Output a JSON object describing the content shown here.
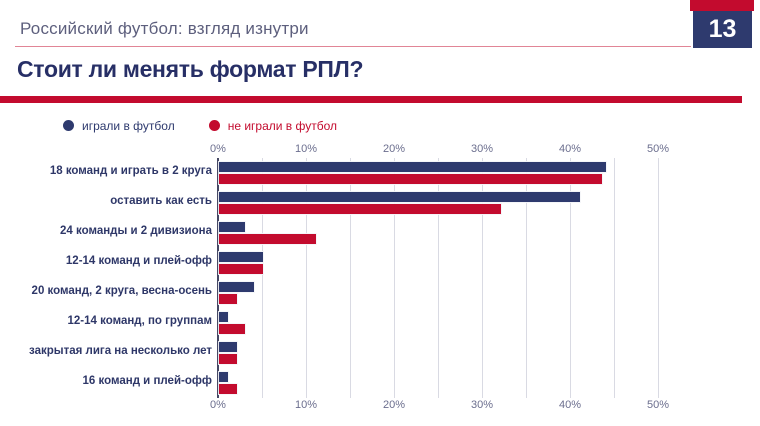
{
  "page": {
    "number": "13"
  },
  "header": {
    "breadcrumb": "Российский футбол: взгляд изнутри"
  },
  "title": "Стоит ли менять формат РПЛ?",
  "colors": {
    "navy": "#2e3a6e",
    "red": "#c30b2e",
    "title_navy": "#272f66",
    "gridline": "#d9dae3",
    "axis_label": "#6b6e8e"
  },
  "legend": [
    {
      "label": "играли в футбол",
      "color": "#2e3a6e"
    },
    {
      "label": "не играли в футбол",
      "color": "#c30b2e"
    }
  ],
  "chart_data": {
    "type": "bar",
    "orientation": "horizontal",
    "title": "Стоит ли менять формат РПЛ?",
    "categories": [
      "18 команд и играть в 2 круга",
      "оставить как есть",
      "24 команды и 2 дивизиона",
      "12-14 команд и плей-офф",
      "20 команд, 2 круга, весна-осень",
      "12-14 команд, по группам",
      "закрытая лига на несколько лет",
      "16 команд и плей-офф"
    ],
    "series": [
      {
        "name": "играли в футбол",
        "color": "#2e3a6e",
        "values": [
          44,
          41,
          3,
          5,
          4,
          1,
          2,
          1
        ]
      },
      {
        "name": "не играли в футбол",
        "color": "#c30b2e",
        "values": [
          43.5,
          32,
          11,
          5,
          2,
          3,
          2,
          2
        ]
      }
    ],
    "xlim": [
      0,
      50
    ],
    "grid_step": 5,
    "x_tick_values": [
      0,
      10,
      20,
      30,
      40,
      50
    ],
    "x_tick_labels": [
      "0%",
      "10%",
      "20%",
      "30%",
      "40%",
      "50%"
    ],
    "axes_shown": [
      "top",
      "bottom"
    ],
    "legend_position": "top-left",
    "grid": true
  }
}
